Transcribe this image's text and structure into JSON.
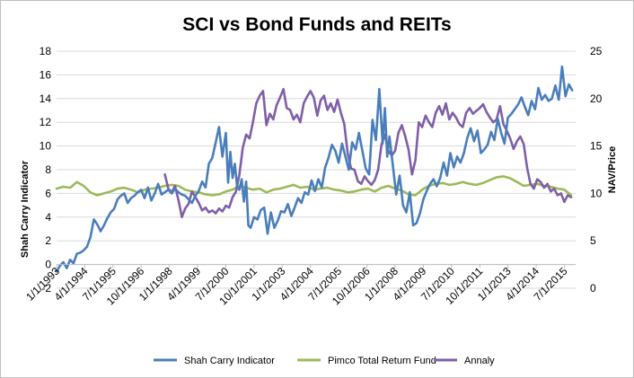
{
  "chart_data": {
    "type": "line",
    "title": "SCI vs Bond Funds and REITs",
    "ylabel": "Shah Carry Indicator",
    "y2label": "NAV/Price",
    "ylim": [
      -2,
      18
    ],
    "y2lim": [
      0,
      25
    ],
    "yticks": [
      "-2",
      "0",
      "2",
      "4",
      "6",
      "8",
      "10",
      "12",
      "14",
      "16",
      "18"
    ],
    "y2ticks": [
      "0",
      "5",
      "10",
      "15",
      "20",
      "25"
    ],
    "xlim": [
      1993.0,
      2016.0
    ],
    "xticks": [
      {
        "label": "1/1/1993",
        "x": 1993.0
      },
      {
        "label": "4/1/1994",
        "x": 1994.25
      },
      {
        "label": "7/1/1995",
        "x": 1995.5
      },
      {
        "label": "10/1/1996",
        "x": 1996.75
      },
      {
        "label": "1/1/1998",
        "x": 1998.0
      },
      {
        "label": "4/1/1999",
        "x": 1999.25
      },
      {
        "label": "7/1/2000",
        "x": 2000.5
      },
      {
        "label": "10/1/2001",
        "x": 2001.75
      },
      {
        "label": "1/1/2003",
        "x": 2003.0
      },
      {
        "label": "4/1/2004",
        "x": 2004.25
      },
      {
        "label": "7/1/2005",
        "x": 2005.5
      },
      {
        "label": "10/1/2006",
        "x": 2006.75
      },
      {
        "label": "1/1/2008",
        "x": 2008.0
      },
      {
        "label": "4/1/2009",
        "x": 2009.25
      },
      {
        "label": "7/1/2010",
        "x": 2010.5
      },
      {
        "label": "10/1/2011",
        "x": 2011.75
      },
      {
        "label": "1/1/2013",
        "x": 2013.0
      },
      {
        "label": "4/1/2014",
        "x": 2014.25
      },
      {
        "label": "7/1/2015",
        "x": 2015.5
      }
    ],
    "legend_position": "bottom",
    "grid": "horizontal",
    "series": [
      {
        "name": "Shah Carry Indicator",
        "axis": "left",
        "color": "#4a7ebb",
        "x": [
          1993.0,
          1993.15,
          1993.3,
          1993.45,
          1993.6,
          1993.75,
          1993.9,
          1994.05,
          1994.2,
          1994.35,
          1994.5,
          1994.65,
          1994.8,
          1994.95,
          1995.1,
          1995.25,
          1995.4,
          1995.55,
          1995.7,
          1995.85,
          1996.0,
          1996.15,
          1996.3,
          1996.45,
          1996.6,
          1996.75,
          1996.9,
          1997.05,
          1997.2,
          1997.35,
          1997.5,
          1997.65,
          1997.8,
          1997.95,
          1998.1,
          1998.25,
          1998.4,
          1998.55,
          1998.7,
          1998.85,
          1999.0,
          1999.15,
          1999.3,
          1999.45,
          1999.6,
          1999.75,
          1999.9,
          2000.05,
          2000.2,
          2000.35,
          2000.5,
          2000.6,
          2000.7,
          2000.8,
          2000.9,
          2001.0,
          2001.1,
          2001.2,
          2001.3,
          2001.4,
          2001.5,
          2001.6,
          2001.75,
          2001.9,
          2002.05,
          2002.2,
          2002.35,
          2002.5,
          2002.65,
          2002.8,
          2002.95,
          2003.1,
          2003.25,
          2003.4,
          2003.55,
          2003.7,
          2003.85,
          2004.0,
          2004.15,
          2004.3,
          2004.45,
          2004.6,
          2004.75,
          2004.9,
          2005.05,
          2005.2,
          2005.35,
          2005.5,
          2005.65,
          2005.8,
          2005.95,
          2006.1,
          2006.25,
          2006.4,
          2006.55,
          2006.7,
          2006.85,
          2007.0,
          2007.15,
          2007.3,
          2007.45,
          2007.55,
          2007.65,
          2007.75,
          2007.9,
          2008.05,
          2008.2,
          2008.35,
          2008.5,
          2008.65,
          2008.8,
          2008.95,
          2009.1,
          2009.25,
          2009.4,
          2009.55,
          2009.7,
          2009.85,
          2010.0,
          2010.15,
          2010.3,
          2010.45,
          2010.6,
          2010.75,
          2010.9,
          2011.05,
          2011.2,
          2011.35,
          2011.5,
          2011.65,
          2011.8,
          2011.95,
          2012.1,
          2012.25,
          2012.4,
          2012.55,
          2012.7,
          2012.85,
          2013.0,
          2013.15,
          2013.3,
          2013.45,
          2013.6,
          2013.75,
          2013.9,
          2014.05,
          2014.2,
          2014.35,
          2014.5,
          2014.65,
          2014.8,
          2014.95,
          2015.1,
          2015.25,
          2015.4,
          2015.55,
          2015.7,
          2015.85
        ],
        "y": [
          -0.6,
          -0.1,
          0.2,
          -0.3,
          0.4,
          0.1,
          0.9,
          1.0,
          1.2,
          1.5,
          2.3,
          3.8,
          3.4,
          2.8,
          3.3,
          3.9,
          4.4,
          4.7,
          5.5,
          5.8,
          6.0,
          5.2,
          5.6,
          5.8,
          6.1,
          6.3,
          5.6,
          6.5,
          5.4,
          6.0,
          6.8,
          5.9,
          6.1,
          6.3,
          6.0,
          6.4,
          6.1,
          5.9,
          5.8,
          5.5,
          5.2,
          5.8,
          6.2,
          7.0,
          6.5,
          8.5,
          9.0,
          10.3,
          11.6,
          9.1,
          11.1,
          6.9,
          9.5,
          7.3,
          8.5,
          6.6,
          6.3,
          7.2,
          5.3,
          7.0,
          3.3,
          3.1,
          4.0,
          3.8,
          4.6,
          4.8,
          2.6,
          4.4,
          3.1,
          3.7,
          4.5,
          4.4,
          5.1,
          4.1,
          4.8,
          5.6,
          5.2,
          6.1,
          5.9,
          7.1,
          6.2,
          7.2,
          6.5,
          8.2,
          9.0,
          10.1,
          9.6,
          8.6,
          10.2,
          9.1,
          8.0,
          10.3,
          9.7,
          11.1,
          9.6,
          8.1,
          7.6,
          12.2,
          10.5,
          14.8,
          10.2,
          13.2,
          9.1,
          10.8,
          8.4,
          5.9,
          7.5,
          5.0,
          4.4,
          6.1,
          3.3,
          3.5,
          4.3,
          5.5,
          6.2,
          6.8,
          7.2,
          6.6,
          7.3,
          8.6,
          7.5,
          9.4,
          8.2,
          9.1,
          8.6,
          9.4,
          10.7,
          11.5,
          10.4,
          11.3,
          9.4,
          9.7,
          10.1,
          11.2,
          10.5,
          12.3,
          11.1,
          10.2,
          12.4,
          12.7,
          13.1,
          13.5,
          14.1,
          13.3,
          12.6,
          13.8,
          13.1,
          14.9,
          13.9,
          14.3,
          13.8,
          14.0,
          15.1,
          13.9,
          16.7,
          14.2,
          15.2,
          14.7
        ]
      },
      {
        "name": "Pimco Total Return Fund",
        "axis": "right",
        "color": "#9bbb59",
        "x": [
          1993.0,
          1993.3,
          1993.6,
          1993.9,
          1994.2,
          1994.5,
          1994.8,
          1995.1,
          1995.4,
          1995.7,
          1996.0,
          1996.3,
          1996.6,
          1996.9,
          1997.2,
          1997.5,
          1997.8,
          1998.1,
          1998.4,
          1998.7,
          1999.0,
          1999.3,
          1999.6,
          1999.9,
          2000.2,
          2000.5,
          2000.8,
          2001.1,
          2001.4,
          2001.7,
          2002.0,
          2002.3,
          2002.6,
          2002.9,
          2003.2,
          2003.5,
          2003.8,
          2004.1,
          2004.4,
          2004.7,
          2005.0,
          2005.3,
          2005.6,
          2005.9,
          2006.2,
          2006.5,
          2006.8,
          2007.1,
          2007.4,
          2007.7,
          2008.0,
          2008.3,
          2008.6,
          2008.9,
          2009.2,
          2009.5,
          2009.8,
          2010.1,
          2010.4,
          2010.7,
          2011.0,
          2011.3,
          2011.6,
          2011.9,
          2012.2,
          2012.5,
          2012.8,
          2013.1,
          2013.4,
          2013.7,
          2014.0,
          2014.3,
          2014.6,
          2014.9,
          2015.2,
          2015.5,
          2015.8
        ],
        "y": [
          10.5,
          10.7,
          10.6,
          11.2,
          10.8,
          10.1,
          9.8,
          10.0,
          10.2,
          10.5,
          10.6,
          10.4,
          10.1,
          10.4,
          10.5,
          10.6,
          10.8,
          10.9,
          10.8,
          10.4,
          10.2,
          10.1,
          9.9,
          9.8,
          9.9,
          10.2,
          10.4,
          10.8,
          10.6,
          10.4,
          10.5,
          10.1,
          10.4,
          10.5,
          10.7,
          10.9,
          10.6,
          10.7,
          10.4,
          10.5,
          10.6,
          10.4,
          10.3,
          10.1,
          10.2,
          10.4,
          10.5,
          10.2,
          10.6,
          10.8,
          10.5,
          10.3,
          9.9,
          9.8,
          10.4,
          10.8,
          11.0,
          11.1,
          10.9,
          11.0,
          11.2,
          11.0,
          10.9,
          11.1,
          11.4,
          11.7,
          11.8,
          11.6,
          11.2,
          10.8,
          10.9,
          11.0,
          10.8,
          10.7,
          10.5,
          10.4,
          9.8
        ]
      },
      {
        "name": "Annaly",
        "axis": "right",
        "color": "#7f5fa8",
        "x": [
          1997.8,
          1997.95,
          1998.1,
          1998.25,
          1998.4,
          1998.55,
          1998.7,
          1998.85,
          1999.0,
          1999.15,
          1999.3,
          1999.45,
          1999.6,
          1999.75,
          1999.9,
          2000.05,
          2000.2,
          2000.35,
          2000.5,
          2000.65,
          2000.8,
          2000.95,
          2001.1,
          2001.25,
          2001.4,
          2001.55,
          2001.7,
          2001.85,
          2002.0,
          2002.15,
          2002.3,
          2002.45,
          2002.6,
          2002.75,
          2002.9,
          2003.05,
          2003.2,
          2003.35,
          2003.5,
          2003.65,
          2003.8,
          2003.95,
          2004.1,
          2004.25,
          2004.4,
          2004.55,
          2004.7,
          2004.85,
          2005.0,
          2005.15,
          2005.3,
          2005.45,
          2005.6,
          2005.75,
          2005.9,
          2006.05,
          2006.2,
          2006.35,
          2006.5,
          2006.65,
          2006.8,
          2006.95,
          2007.1,
          2007.25,
          2007.4,
          2007.55,
          2007.7,
          2007.85,
          2008.0,
          2008.15,
          2008.3,
          2008.45,
          2008.6,
          2008.75,
          2008.9,
          2009.05,
          2009.2,
          2009.35,
          2009.5,
          2009.65,
          2009.8,
          2009.95,
          2010.1,
          2010.25,
          2010.4,
          2010.55,
          2010.7,
          2010.85,
          2011.0,
          2011.15,
          2011.3,
          2011.45,
          2011.6,
          2011.75,
          2011.9,
          2012.05,
          2012.2,
          2012.35,
          2012.5,
          2012.65,
          2012.8,
          2012.95,
          2013.1,
          2013.25,
          2013.4,
          2013.55,
          2013.7,
          2013.85,
          2014.0,
          2014.15,
          2014.3,
          2014.45,
          2014.6,
          2014.75,
          2014.9,
          2015.05,
          2015.2,
          2015.35,
          2015.5,
          2015.65,
          2015.8
        ],
        "y": [
          12.0,
          10.5,
          10.1,
          10.8,
          9.3,
          7.5,
          8.4,
          8.9,
          10.2,
          9.6,
          9.0,
          8.2,
          8.5,
          8.0,
          8.2,
          7.9,
          8.4,
          8.1,
          8.7,
          8.5,
          9.6,
          10.2,
          12.0,
          14.8,
          16.2,
          15.8,
          17.5,
          19.5,
          20.3,
          20.8,
          17.2,
          18.4,
          17.8,
          19.3,
          20.1,
          21.0,
          19.0,
          18.8,
          17.8,
          18.3,
          17.5,
          19.5,
          20.2,
          20.8,
          20.1,
          18.2,
          19.8,
          20.3,
          18.8,
          19.5,
          18.6,
          19.9,
          18.5,
          17.3,
          14.2,
          12.6,
          12.5,
          11.3,
          11.0,
          11.8,
          11.3,
          10.9,
          11.4,
          12.5,
          15.2,
          16.2,
          14.5,
          14.0,
          14.5,
          16.4,
          17.2,
          16.0,
          14.6,
          12.0,
          13.5,
          17.5,
          17.0,
          18.2,
          17.5,
          17.0,
          18.5,
          19.2,
          18.3,
          19.5,
          17.8,
          18.5,
          18.0,
          17.3,
          17.0,
          18.5,
          19.0,
          18.4,
          18.7,
          19.0,
          19.4,
          18.6,
          18.0,
          17.5,
          17.8,
          19.2,
          17.3,
          16.6,
          15.8,
          14.7,
          15.5,
          16.0,
          15.2,
          12.7,
          11.0,
          10.5,
          11.5,
          11.2,
          10.6,
          11.0,
          10.2,
          10.5,
          9.8,
          10.0,
          9.1,
          9.8,
          9.6
        ]
      }
    ]
  }
}
